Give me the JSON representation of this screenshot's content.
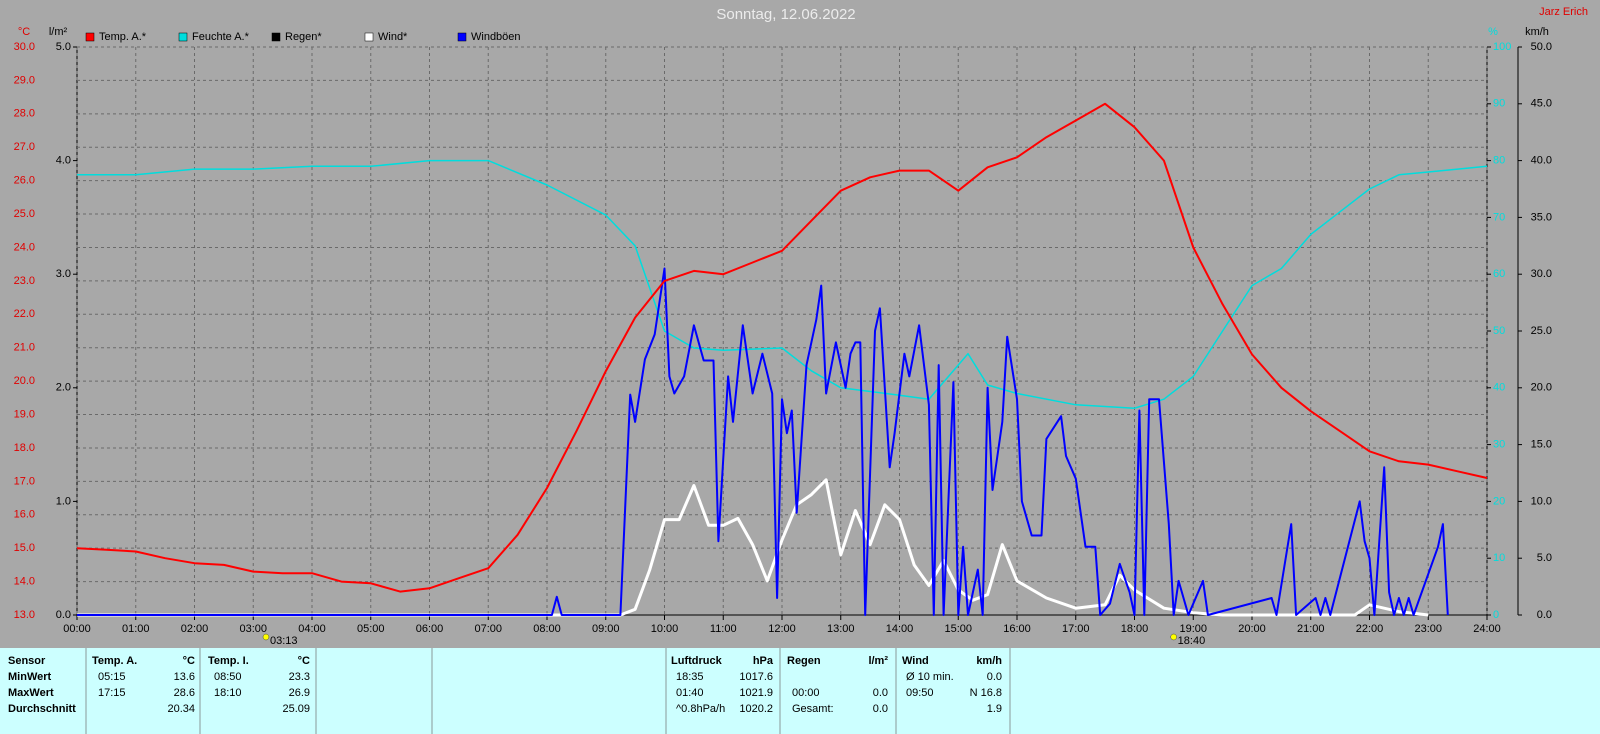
{
  "chart_data": {
    "type": "line",
    "title": "Sonntag, 12.06.2022",
    "author": "Jarz Erich",
    "ylabel": "°C",
    "y2label": "l/m²",
    "y3label": "%",
    "y4label": "km/h",
    "xlim": [
      0,
      1440
    ],
    "xticks": [
      {
        "value": 0,
        "label": "00:00"
      },
      {
        "value": 60,
        "label": "01:00"
      },
      {
        "value": 120,
        "label": "02:00"
      },
      {
        "value": 180,
        "label": "03:00"
      },
      {
        "value": 240,
        "label": "04:00"
      },
      {
        "value": 300,
        "label": "05:00"
      },
      {
        "value": 360,
        "label": "06:00"
      },
      {
        "value": 420,
        "label": "07:00"
      },
      {
        "value": 480,
        "label": "08:00"
      },
      {
        "value": 540,
        "label": "09:00"
      },
      {
        "value": 600,
        "label": "10:00"
      },
      {
        "value": 660,
        "label": "11:00"
      },
      {
        "value": 720,
        "label": "12:00"
      },
      {
        "value": 780,
        "label": "13:00"
      },
      {
        "value": 840,
        "label": "14:00"
      },
      {
        "value": 900,
        "label": "15:00"
      },
      {
        "value": 960,
        "label": "16:00"
      },
      {
        "value": 1020,
        "label": "17:00"
      },
      {
        "value": 1080,
        "label": "18:00"
      },
      {
        "value": 1140,
        "label": "19:00"
      },
      {
        "value": 1200,
        "label": "20:00"
      },
      {
        "value": 1260,
        "label": "21:00"
      },
      {
        "value": 1320,
        "label": "22:00"
      },
      {
        "value": 1380,
        "label": "23:00"
      },
      {
        "value": 1440,
        "label": "24:00"
      }
    ],
    "ylim": [
      13,
      30
    ],
    "yticks": [
      {
        "value": 13,
        "label": "13.0"
      },
      {
        "value": 14,
        "label": "14.0"
      },
      {
        "value": 15,
        "label": "15.0"
      },
      {
        "value": 16,
        "label": "16.0"
      },
      {
        "value": 17,
        "label": "17.0"
      },
      {
        "value": 18,
        "label": "18.0"
      },
      {
        "value": 19,
        "label": "19.0"
      },
      {
        "value": 20,
        "label": "20.0"
      },
      {
        "value": 21,
        "label": "21.0"
      },
      {
        "value": 22,
        "label": "22.0"
      },
      {
        "value": 23,
        "label": "23.0"
      },
      {
        "value": 24,
        "label": "24.0"
      },
      {
        "value": 25,
        "label": "25.0"
      },
      {
        "value": 26,
        "label": "26.0"
      },
      {
        "value": 27,
        "label": "27.0"
      },
      {
        "value": 28,
        "label": "28.0"
      },
      {
        "value": 29,
        "label": "29.0"
      },
      {
        "value": 30,
        "label": "30.0"
      }
    ],
    "y2lim": [
      0,
      5
    ],
    "y2ticks": [
      {
        "value": 0,
        "label": "0.0"
      },
      {
        "value": 1,
        "label": "1.0"
      },
      {
        "value": 2,
        "label": "2.0"
      },
      {
        "value": 3,
        "label": "3.0"
      },
      {
        "value": 4,
        "label": "4.0"
      },
      {
        "value": 5,
        "label": "5.0"
      }
    ],
    "y3lim": [
      0,
      100
    ],
    "y3ticks": [
      0,
      10,
      20,
      30,
      40,
      50,
      60,
      70,
      80,
      90,
      100
    ],
    "y4lim": [
      0,
      50
    ],
    "y4ticks": [
      {
        "value": 0,
        "label": "0.0"
      },
      {
        "value": 5,
        "label": "5.0"
      },
      {
        "value": 10,
        "label": "10.0"
      },
      {
        "value": 15,
        "label": "15.0"
      },
      {
        "value": 20,
        "label": "20.0"
      },
      {
        "value": 25,
        "label": "25.0"
      },
      {
        "value": 30,
        "label": "30.0"
      },
      {
        "value": 35,
        "label": "35.0"
      },
      {
        "value": 40,
        "label": "40.0"
      },
      {
        "value": 45,
        "label": "45.0"
      },
      {
        "value": 50,
        "label": "50.0"
      }
    ],
    "grid": true,
    "annotations": [
      {
        "x": 193,
        "text": "03:13"
      },
      {
        "x": 1120,
        "text": "18:40"
      }
    ],
    "series": [
      {
        "name": "Temp. A.*",
        "color": "#ff0000",
        "axis": "y",
        "x": [
          0,
          30,
          60,
          90,
          120,
          150,
          180,
          210,
          240,
          270,
          300,
          330,
          360,
          390,
          420,
          450,
          480,
          510,
          540,
          570,
          600,
          630,
          660,
          690,
          720,
          750,
          780,
          810,
          840,
          870,
          900,
          930,
          960,
          990,
          1020,
          1050,
          1080,
          1110,
          1140,
          1170,
          1200,
          1230,
          1260,
          1290,
          1320,
          1350,
          1380,
          1410,
          1440
        ],
        "values": [
          15.0,
          14.95,
          14.9,
          14.7,
          14.55,
          14.5,
          14.3,
          14.25,
          14.25,
          14.0,
          13.95,
          13.7,
          13.8,
          14.1,
          14.4,
          15.4,
          16.8,
          18.5,
          20.3,
          21.9,
          23.0,
          23.3,
          23.2,
          23.55,
          23.9,
          24.8,
          25.7,
          26.1,
          26.3,
          26.3,
          25.7,
          26.4,
          26.7,
          27.3,
          27.8,
          28.3,
          27.6,
          26.6,
          24.0,
          22.3,
          20.8,
          19.8,
          19.1,
          18.5,
          17.9,
          17.6,
          17.5,
          17.3,
          17.1
        ]
      },
      {
        "name": "Feuchte A.*",
        "color": "#00dddd",
        "axis": "y3",
        "x": [
          0,
          60,
          120,
          180,
          240,
          300,
          360,
          420,
          480,
          540,
          570,
          600,
          630,
          660,
          720,
          750,
          780,
          840,
          870,
          910,
          930,
          960,
          1020,
          1080,
          1110,
          1140,
          1170,
          1200,
          1230,
          1260,
          1290,
          1320,
          1350,
          1380,
          1440
        ],
        "values": [
          77.5,
          77.5,
          78.5,
          78.5,
          79,
          79,
          80,
          80,
          75.7,
          70.4,
          65,
          50,
          47,
          46.6,
          47,
          43,
          40,
          38.7,
          38,
          46,
          40.5,
          39,
          37,
          36.4,
          38,
          42,
          50,
          58,
          61,
          67,
          71,
          75,
          77.5,
          78,
          79
        ]
      },
      {
        "name": "Regen*",
        "color": "#000000",
        "axis": "y2",
        "x": [
          0,
          1440
        ],
        "values": [
          0,
          0
        ]
      },
      {
        "name": "Wind*",
        "color": "#ffffff",
        "axis": "y4",
        "x": [
          0,
          555,
          570,
          585,
          600,
          615,
          630,
          645,
          660,
          675,
          690,
          705,
          720,
          735,
          750,
          765,
          780,
          795,
          810,
          825,
          840,
          855,
          870,
          885,
          900,
          915,
          930,
          945,
          960,
          990,
          1020,
          1050,
          1065,
          1080,
          1110,
          1140,
          1170,
          1305,
          1320,
          1350,
          1380
        ],
        "values": [
          0,
          0,
          0.5,
          4,
          8.4,
          8.4,
          11.4,
          7.9,
          7.9,
          8.5,
          6.2,
          3,
          6.6,
          9.7,
          10.6,
          11.9,
          5.3,
          9.2,
          6.2,
          9.7,
          8.4,
          4.4,
          2.6,
          4.8,
          2.2,
          1.3,
          1.8,
          6.2,
          3,
          1.5,
          0.6,
          0.9,
          3.5,
          2.2,
          0.6,
          0.2,
          0,
          0,
          0.9,
          0.3,
          0
        ]
      },
      {
        "name": "Windböen",
        "color": "#0000ff",
        "axis": "y4",
        "x": [
          0,
          485,
          490,
          495,
          555,
          565,
          570,
          580,
          590,
          600,
          605,
          610,
          620,
          630,
          640,
          650,
          655,
          665,
          670,
          680,
          690,
          700,
          710,
          715,
          720,
          725,
          730,
          735,
          745,
          755,
          760,
          765,
          775,
          785,
          790,
          795,
          800,
          805,
          815,
          820,
          830,
          835,
          845,
          850,
          860,
          870,
          875,
          880,
          885,
          895,
          900,
          905,
          910,
          920,
          925,
          930,
          935,
          945,
          950,
          960,
          965,
          975,
          985,
          990,
          1005,
          1010,
          1020,
          1030,
          1040,
          1045,
          1055,
          1065,
          1075,
          1080,
          1085,
          1090,
          1095,
          1105,
          1115,
          1120,
          1125,
          1135,
          1150,
          1155,
          1220,
          1225,
          1240,
          1245,
          1265,
          1270,
          1275,
          1280,
          1310,
          1315,
          1320,
          1325,
          1335,
          1340,
          1345,
          1350,
          1355,
          1360,
          1365,
          1390,
          1395,
          1400
        ],
        "values": [
          0,
          0,
          1.6,
          0,
          0,
          19.4,
          17,
          22.5,
          24.7,
          30.5,
          21,
          19.5,
          21,
          25.5,
          22.4,
          22.4,
          6.5,
          21,
          17,
          25.5,
          19.5,
          23,
          19.5,
          1.5,
          19,
          16,
          18,
          9,
          22,
          26,
          29,
          19.5,
          24,
          20,
          23,
          24,
          24,
          0,
          25,
          27,
          13,
          16,
          23,
          21,
          25.5,
          18.5,
          0,
          22,
          0,
          20.5,
          0,
          6,
          0,
          4,
          0,
          20,
          11,
          17,
          24.5,
          19,
          10,
          7,
          7,
          15.5,
          17.5,
          14,
          12,
          6,
          6,
          0,
          1,
          4.5,
          2,
          0,
          18,
          0,
          19,
          19,
          8,
          0,
          3,
          0,
          3,
          0,
          1.5,
          0,
          8,
          0,
          1.5,
          0,
          1.5,
          0,
          10,
          6.5,
          5,
          0,
          13,
          2,
          0,
          1.5,
          0,
          1.5,
          0,
          6,
          8,
          0
        ]
      }
    ]
  },
  "stats_table": {
    "row_labels": [
      "Sensor",
      "MinWert",
      "MaxWert",
      "Durchschnitt"
    ],
    "groups": [
      {
        "name": "Temp. A.",
        "unit": "°C",
        "rows": [
          {
            "time": "05:15",
            "value": "13.6"
          },
          {
            "time": "17:15",
            "value": "28.6"
          },
          {
            "value": "20.34"
          }
        ]
      },
      {
        "name": "Temp. I.",
        "unit": "°C",
        "rows": [
          {
            "time": "08:50",
            "value": "23.3"
          },
          {
            "time": "18:10",
            "value": "26.9"
          },
          {
            "value": "25.09"
          }
        ]
      },
      {
        "name": "Luftdruck",
        "unit": "hPa",
        "rows": [
          {
            "time": "18:35",
            "value": "1017.6"
          },
          {
            "time": "01:40",
            "value": "1021.9"
          },
          {
            "time": "^0.8hPa/h",
            "value": "1020.2"
          }
        ]
      },
      {
        "name": "Regen",
        "unit": "l/m²",
        "rows": [
          null,
          {
            "time": "00:00",
            "value": "0.0"
          },
          {
            "time": "Gesamt:",
            "value": "0.0"
          }
        ]
      },
      {
        "name": "Wind",
        "unit": "km/h",
        "rows": [
          {
            "time": "Ø 10 min.",
            "value": "0.0"
          },
          {
            "time": "09:50",
            "value": "N 16.8"
          },
          {
            "value": "1.9"
          }
        ]
      }
    ]
  }
}
